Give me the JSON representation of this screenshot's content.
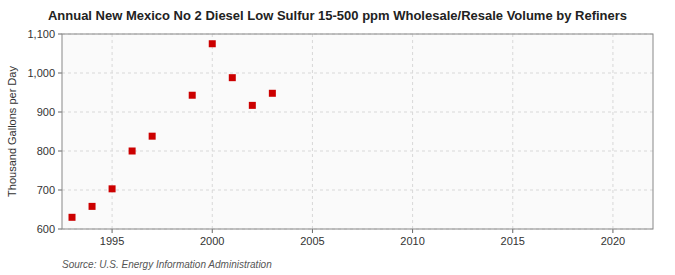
{
  "chart_data": {
    "type": "scatter",
    "title": "Annual New Mexico No 2 Diesel Low Sulfur 15-500 ppm Wholesale/Resale Volume by Refiners",
    "ylabel": "Thousand Gallons per Day",
    "source": "Source: U.S. Energy Information Administration",
    "x": [
      1993,
      1994,
      1995,
      1996,
      1997,
      1999,
      2000,
      2001,
      2002,
      2003
    ],
    "values": [
      630,
      658,
      703,
      800,
      838,
      943,
      1075,
      988,
      917,
      948
    ],
    "color": "#cc0000",
    "marker": "square",
    "xlim": [
      1992.5,
      2022
    ],
    "ylim": [
      600,
      1100
    ],
    "xticks": [
      1995,
      2000,
      2005,
      2010,
      2015,
      2020
    ],
    "yticks": [
      600,
      700,
      800,
      900,
      {
        "value": 1000,
        "label": "1,000"
      },
      {
        "value": 1100,
        "label": "1,100"
      }
    ],
    "grid": true
  }
}
